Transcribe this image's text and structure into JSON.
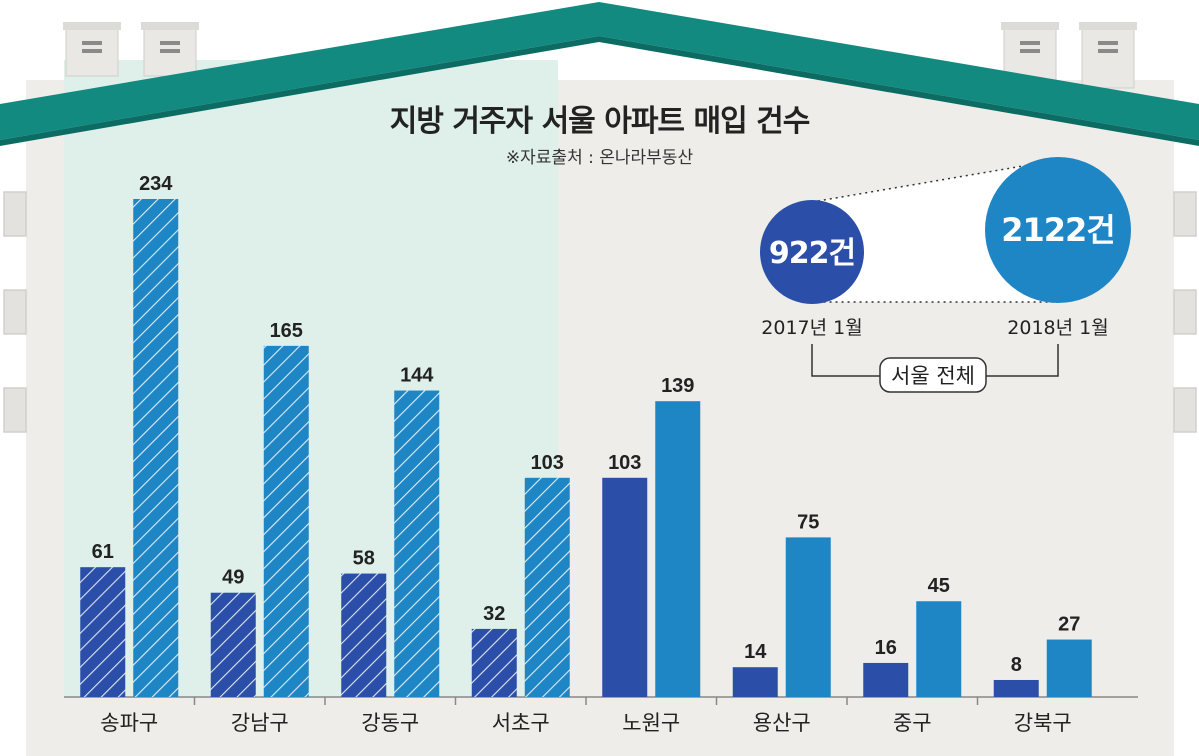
{
  "title": "지방 거주자 서울 아파트 매입 건수",
  "source": "※자료출처 : 온나라부동산",
  "colors": {
    "wall": "#efedea",
    "wall_highlight": "#dff0ea",
    "roof": "#128a80",
    "series_2017": "#2b4fa8",
    "series_2018": "#1f86c6",
    "text": "#222222"
  },
  "total": {
    "label": "서울 전체",
    "before": {
      "value": "922건",
      "label": "2017년 1월"
    },
    "after": {
      "value": "2122건",
      "label": "2018년 1월"
    }
  },
  "chart_data": {
    "type": "bar",
    "title": "지방 거주자 서울 아파트 매입 건수",
    "categories": [
      "송파구",
      "강남구",
      "강동구",
      "서초구",
      "노원구",
      "용산구",
      "중구",
      "강북구"
    ],
    "series": [
      {
        "values": [
          61,
          49,
          58,
          32,
          103,
          14,
          16,
          8
        ]
      },
      {
        "values": [
          234,
          165,
          144,
          103,
          139,
          75,
          45,
          27
        ]
      }
    ],
    "hatched_categories": [
      "송파구",
      "강남구",
      "강동구",
      "서초구"
    ],
    "ylim": [
      0,
      240
    ],
    "grid": false,
    "legend": "none"
  }
}
